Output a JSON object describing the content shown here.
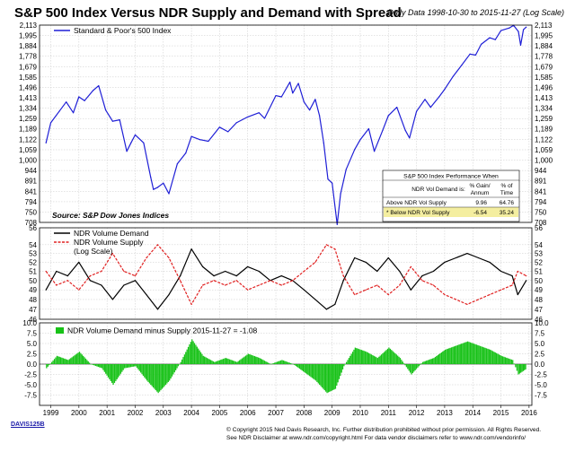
{
  "header": {
    "title": "S&P 500 Index Versus NDR Supply and Demand with Spread",
    "subtitle": "Daily Data 1998-10-30 to 2015-11-27 (Log Scale)"
  },
  "chart_data": [
    {
      "type": "line",
      "panel": "top",
      "scale": "log",
      "ylim": [
        708,
        2113
      ],
      "y_ticks": [
        "2,113",
        "1,995",
        "1,884",
        "1,778",
        "1,679",
        "1,585",
        "1,496",
        "1,413",
        "1,334",
        "1,259",
        "1,189",
        "1,122",
        "1,059",
        "1,000",
        "944",
        "891",
        "841",
        "794",
        "750",
        "708"
      ],
      "series": [
        {
          "name": "Standard & Poor's 500 Index",
          "color": "#1f1fd6",
          "x": [
            1998.83,
            1999.0,
            1999.3,
            1999.55,
            1999.8,
            2000.0,
            2000.2,
            2000.5,
            2000.7,
            2000.95,
            2001.2,
            2001.45,
            2001.7,
            2001.85,
            2002.0,
            2002.3,
            2002.55,
            2002.65,
            2002.8,
            2003.0,
            2003.2,
            2003.5,
            2003.8,
            2004.0,
            2004.3,
            2004.6,
            2005.0,
            2005.3,
            2005.6,
            2006.0,
            2006.4,
            2006.6,
            2007.0,
            2007.2,
            2007.5,
            2007.6,
            2007.8,
            2008.0,
            2008.2,
            2008.4,
            2008.55,
            2008.7,
            2008.85,
            2009.0,
            2009.18,
            2009.3,
            2009.5,
            2009.8,
            2010.0,
            2010.3,
            2010.5,
            2010.8,
            2011.0,
            2011.3,
            2011.6,
            2011.75,
            2012.0,
            2012.3,
            2012.5,
            2012.8,
            2013.0,
            2013.3,
            2013.6,
            2013.9,
            2014.1,
            2014.3,
            2014.6,
            2014.8,
            2015.0,
            2015.3,
            2015.45,
            2015.62,
            2015.7,
            2015.8,
            2015.9
          ],
          "values": [
            1100,
            1230,
            1310,
            1380,
            1300,
            1420,
            1390,
            1470,
            1510,
            1320,
            1240,
            1250,
            1050,
            1100,
            1150,
            1100,
            910,
            850,
            860,
            880,
            830,
            980,
            1040,
            1140,
            1120,
            1110,
            1200,
            1170,
            1230,
            1270,
            1300,
            1260,
            1430,
            1420,
            1540,
            1450,
            1530,
            1380,
            1320,
            1400,
            1280,
            1100,
            900,
            880,
            700,
            830,
            950,
            1060,
            1120,
            1190,
            1050,
            1180,
            1280,
            1340,
            1180,
            1130,
            1310,
            1400,
            1340,
            1420,
            1480,
            1590,
            1690,
            1800,
            1790,
            1900,
            1970,
            1950,
            2050,
            2080,
            2110,
            2040,
            1890,
            2060,
            2090
          ]
        }
      ],
      "annotation": "Source:  S&P Dow Jones Indices",
      "table": {
        "title": "S&P 500 Index Performance When",
        "headers": [
          "NDR Vol Demand is:",
          "% Gain/ Annum",
          "% of Time"
        ],
        "rows": [
          [
            "Above NDR Vol Supply",
            "9.96",
            "64.76"
          ],
          [
            "* Below NDR Vol Supply",
            "-6.54",
            "35.24"
          ]
        ]
      }
    },
    {
      "type": "line",
      "panel": "middle",
      "scale": "log",
      "ylim": [
        46,
        56
      ],
      "y_ticks": [
        "56",
        "54",
        "53",
        "52",
        "51",
        "50",
        "49",
        "48",
        "47",
        "46"
      ],
      "series": [
        {
          "name": "NDR Volume Demand",
          "color": "#000000",
          "x": [
            1998.83,
            1999.2,
            1999.6,
            2000.0,
            2000.4,
            2000.8,
            2001.2,
            2001.6,
            2002.0,
            2002.4,
            2002.8,
            2003.2,
            2003.6,
            2004.0,
            2004.4,
            2004.8,
            2005.2,
            2005.6,
            2006.0,
            2006.4,
            2006.8,
            2007.2,
            2007.6,
            2008.0,
            2008.4,
            2008.8,
            2009.1,
            2009.4,
            2009.8,
            2010.2,
            2010.6,
            2011.0,
            2011.4,
            2011.8,
            2012.2,
            2012.6,
            2013.0,
            2013.4,
            2013.8,
            2014.2,
            2014.6,
            2015.0,
            2015.4,
            2015.6,
            2015.9
          ],
          "values": [
            49,
            51,
            50.5,
            52,
            50,
            49.5,
            48,
            49.5,
            50,
            48.5,
            47,
            48.5,
            50.5,
            53.5,
            51.5,
            50.5,
            51,
            50.5,
            51.5,
            51,
            50,
            50.5,
            50,
            49,
            48,
            47,
            47.5,
            50,
            52.5,
            52,
            51,
            52.5,
            51,
            49,
            50.5,
            51,
            52,
            52.5,
            53,
            52.5,
            52,
            51,
            50.5,
            48.5,
            50
          ]
        },
        {
          "name": "NDR Volume Supply",
          "color": "#e02020",
          "x": [
            1998.83,
            1999.2,
            1999.6,
            2000.0,
            2000.4,
            2000.8,
            2001.2,
            2001.6,
            2002.0,
            2002.4,
            2002.8,
            2003.2,
            2003.6,
            2004.0,
            2004.4,
            2004.8,
            2005.2,
            2005.6,
            2006.0,
            2006.4,
            2006.8,
            2007.2,
            2007.6,
            2008.0,
            2008.4,
            2008.8,
            2009.1,
            2009.4,
            2009.8,
            2010.2,
            2010.6,
            2011.0,
            2011.4,
            2011.8,
            2012.2,
            2012.6,
            2013.0,
            2013.4,
            2013.8,
            2014.2,
            2014.6,
            2015.0,
            2015.4,
            2015.6,
            2015.9
          ],
          "values": [
            51,
            49.5,
            50,
            49,
            50.5,
            51,
            53,
            51,
            50.5,
            52.5,
            54,
            52.5,
            50,
            47.5,
            49.5,
            50,
            49.5,
            50,
            49,
            49.5,
            50,
            49.5,
            50,
            51,
            52,
            54,
            53.5,
            50.5,
            48.5,
            49,
            49.5,
            48.5,
            49.5,
            51.5,
            50,
            49.5,
            48.5,
            48,
            47.5,
            48,
            48.5,
            49,
            49.5,
            51,
            50.5
          ]
        }
      ],
      "legend_note": "(Log Scale)"
    },
    {
      "type": "area",
      "panel": "bottom",
      "ylim": [
        -10,
        10
      ],
      "y_ticks": [
        "10.0",
        "7.5",
        "5.0",
        "2.5",
        "0.0",
        "-2.5",
        "-5.0",
        "-7.5"
      ],
      "series": [
        {
          "name": "NDR Volume Demand minus Supply 2015-11-27 = -1.08",
          "color": "#17c217",
          "x": [
            1998.83,
            1999.2,
            1999.6,
            2000.0,
            2000.4,
            2000.8,
            2001.2,
            2001.6,
            2002.0,
            2002.4,
            2002.8,
            2003.2,
            2003.6,
            2004.0,
            2004.4,
            2004.8,
            2005.2,
            2005.6,
            2006.0,
            2006.4,
            2006.8,
            2007.2,
            2007.6,
            2008.0,
            2008.4,
            2008.8,
            2009.1,
            2009.4,
            2009.8,
            2010.2,
            2010.6,
            2011.0,
            2011.4,
            2011.8,
            2012.2,
            2012.6,
            2013.0,
            2013.4,
            2013.8,
            2014.2,
            2014.6,
            2015.0,
            2015.4,
            2015.6,
            2015.9
          ],
          "values": [
            -1,
            2,
            1,
            3,
            0,
            -1,
            -5,
            -1,
            -0.5,
            -4,
            -7,
            -4,
            0.5,
            6,
            2,
            0.5,
            1.5,
            0.5,
            2.5,
            1.5,
            0,
            1,
            0,
            -2,
            -4,
            -7,
            -6,
            -0.5,
            4,
            3,
            1.5,
            4,
            1.5,
            -2.5,
            0.5,
            1.5,
            3.5,
            4.5,
            5.5,
            4.5,
            3.5,
            2,
            1,
            -2.5,
            -1.08
          ]
        }
      ]
    }
  ],
  "x_axis": {
    "ticks": [
      "1999",
      "2000",
      "2001",
      "2002",
      "2003",
      "2004",
      "2005",
      "2006",
      "2007",
      "2008",
      "2009",
      "2010",
      "2011",
      "2012",
      "2013",
      "2014",
      "2015",
      "2016"
    ]
  },
  "footer": {
    "code": "DAVIS125B",
    "line1": "© Copyright 2015 Ned Davis Research, Inc. Further distribution prohibited without prior permission. All Rights Reserved.",
    "line2": "See NDR Disclaimer at www.ndr.com/copyright.html  For data vendor disclaimers refer to www.ndr.com/vendorinfo/"
  }
}
